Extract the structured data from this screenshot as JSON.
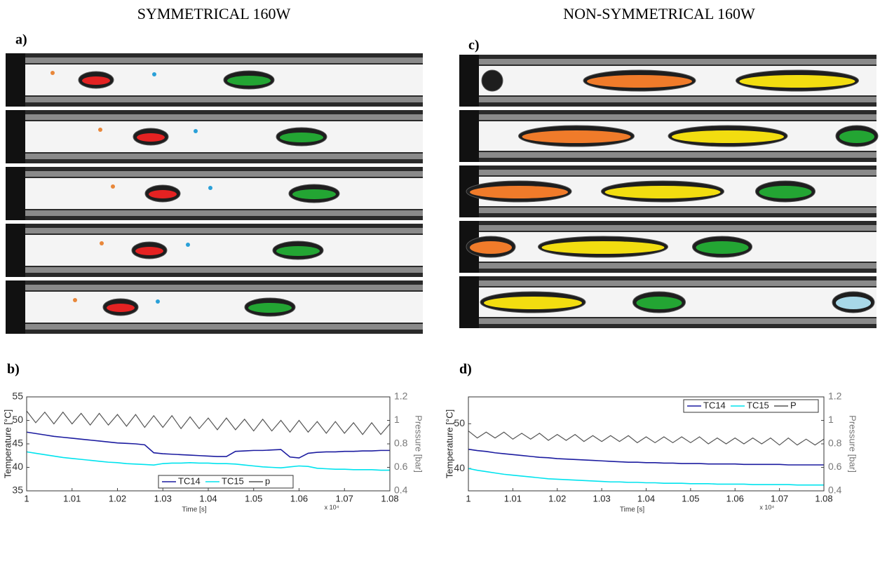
{
  "figure": {
    "headings": [
      "SYMMETRICAL 160W",
      "NON-SYMMETRICAL 160W"
    ],
    "panel_labels": [
      "a)",
      "b)",
      "c)",
      "d)"
    ]
  },
  "chart_data": [
    {
      "type": "line",
      "xlabel": "Time [s]",
      "ylabel": "Temperature [°C]",
      "y2label": "Pressure [bar]",
      "x_multiplier": "x 10⁴",
      "x": [
        1,
        1.002,
        1.004,
        1.006,
        1.008,
        1.01,
        1.012,
        1.014,
        1.016,
        1.018,
        1.02,
        1.022,
        1.024,
        1.026,
        1.028,
        1.03,
        1.032,
        1.034,
        1.036,
        1.038,
        1.04,
        1.042,
        1.044,
        1.046,
        1.048,
        1.05,
        1.052,
        1.054,
        1.056,
        1.058,
        1.06,
        1.062,
        1.064,
        1.066,
        1.068,
        1.07,
        1.072,
        1.074,
        1.076,
        1.078,
        1.08
      ],
      "xlim": [
        1,
        1.08
      ],
      "xticks": [
        1,
        1.01,
        1.02,
        1.03,
        1.04,
        1.05,
        1.06,
        1.07,
        1.08
      ],
      "ylim": [
        35,
        55
      ],
      "yticks": [
        35,
        40,
        45,
        50,
        55
      ],
      "y2lim": [
        0.4,
        1.2
      ],
      "y2ticks": [
        0.4,
        0.6,
        0.8,
        1,
        1.2
      ],
      "legend": "bottom",
      "grid": false,
      "series": [
        {
          "name": "TC14",
          "color": "#1c1ca0",
          "values": [
            47.5,
            47.2,
            46.9,
            46.6,
            46.4,
            46.2,
            46.0,
            45.8,
            45.6,
            45.4,
            45.2,
            45.1,
            45.0,
            44.8,
            43.1,
            42.9,
            42.8,
            42.7,
            42.6,
            42.5,
            42.4,
            42.3,
            42.3,
            43.4,
            43.5,
            43.6,
            43.6,
            43.7,
            43.8,
            42.2,
            42.0,
            43.0,
            43.2,
            43.3,
            43.3,
            43.4,
            43.4,
            43.5,
            43.5,
            43.6,
            43.6
          ]
        },
        {
          "name": "TC15",
          "color": "#00e3ee",
          "values": [
            43.3,
            43.0,
            42.7,
            42.4,
            42.1,
            41.9,
            41.7,
            41.5,
            41.3,
            41.1,
            41.0,
            40.8,
            40.7,
            40.6,
            40.5,
            40.8,
            40.9,
            40.9,
            41.0,
            40.9,
            40.9,
            40.8,
            40.8,
            40.7,
            40.5,
            40.3,
            40.1,
            40.0,
            39.9,
            40.1,
            40.3,
            40.2,
            39.8,
            39.7,
            39.6,
            39.6,
            39.5,
            39.5,
            39.5,
            39.4,
            39.4
          ]
        },
        {
          "name": "p",
          "color": "#555555",
          "axis": "y2",
          "values": [
            1.08,
            0.98,
            1.07,
            0.97,
            1.07,
            0.97,
            1.06,
            0.96,
            1.06,
            0.96,
            1.05,
            0.95,
            1.05,
            0.94,
            1.04,
            0.94,
            1.04,
            0.93,
            1.03,
            0.93,
            1.02,
            0.92,
            1.02,
            0.92,
            1.01,
            0.91,
            1.01,
            0.91,
            1.0,
            0.9,
            1.0,
            0.9,
            0.99,
            0.89,
            0.99,
            0.89,
            0.98,
            0.88,
            0.98,
            0.88,
            0.97
          ]
        }
      ]
    },
    {
      "type": "line",
      "xlabel": "Time [s]",
      "ylabel": "Temperature [°C]",
      "y2label": "Pressure [bar]",
      "x_multiplier": "x 10⁴",
      "x": [
        1,
        1.002,
        1.004,
        1.006,
        1.008,
        1.01,
        1.012,
        1.014,
        1.016,
        1.018,
        1.02,
        1.022,
        1.024,
        1.026,
        1.028,
        1.03,
        1.032,
        1.034,
        1.036,
        1.038,
        1.04,
        1.042,
        1.044,
        1.046,
        1.048,
        1.05,
        1.052,
        1.054,
        1.056,
        1.058,
        1.06,
        1.062,
        1.064,
        1.066,
        1.068,
        1.07,
        1.072,
        1.074,
        1.076,
        1.078,
        1.08
      ],
      "xlim": [
        1,
        1.08
      ],
      "xticks": [
        1,
        1.01,
        1.02,
        1.03,
        1.04,
        1.05,
        1.06,
        1.07,
        1.08
      ],
      "ylim": [
        35,
        56
      ],
      "yticks": [
        40,
        50
      ],
      "y2lim": [
        0.4,
        1.2
      ],
      "y2ticks": [
        0.4,
        0.6,
        0.8,
        1,
        1.2
      ],
      "legend": "top right",
      "grid": false,
      "series": [
        {
          "name": "TC14",
          "color": "#1c1ca0",
          "values": [
            44.3,
            44.0,
            43.8,
            43.5,
            43.3,
            43.1,
            42.9,
            42.7,
            42.5,
            42.4,
            42.2,
            42.1,
            42.0,
            41.9,
            41.8,
            41.7,
            41.6,
            41.5,
            41.4,
            41.4,
            41.3,
            41.3,
            41.2,
            41.2,
            41.1,
            41.1,
            41.1,
            41.0,
            41.0,
            41.0,
            41.0,
            40.9,
            40.9,
            40.9,
            40.9,
            40.9,
            40.8,
            40.8,
            40.8,
            40.8,
            40.8
          ]
        },
        {
          "name": "TC15",
          "color": "#00e3ee",
          "values": [
            40.0,
            39.6,
            39.3,
            39.0,
            38.7,
            38.5,
            38.3,
            38.1,
            37.9,
            37.7,
            37.6,
            37.5,
            37.4,
            37.3,
            37.2,
            37.1,
            37.0,
            37.0,
            36.9,
            36.9,
            36.8,
            36.8,
            36.7,
            36.7,
            36.7,
            36.6,
            36.6,
            36.6,
            36.5,
            36.5,
            36.5,
            36.5,
            36.4,
            36.4,
            36.4,
            36.4,
            36.4,
            36.3,
            36.3,
            36.3,
            36.3
          ]
        },
        {
          "name": "P",
          "color": "#555555",
          "axis": "y2",
          "values": [
            0.91,
            0.85,
            0.9,
            0.85,
            0.9,
            0.84,
            0.89,
            0.84,
            0.89,
            0.83,
            0.88,
            0.83,
            0.88,
            0.82,
            0.87,
            0.82,
            0.87,
            0.82,
            0.87,
            0.81,
            0.86,
            0.81,
            0.86,
            0.81,
            0.86,
            0.81,
            0.86,
            0.8,
            0.85,
            0.8,
            0.85,
            0.8,
            0.85,
            0.8,
            0.85,
            0.79,
            0.85,
            0.79,
            0.84,
            0.79,
            0.84
          ]
        }
      ]
    }
  ]
}
